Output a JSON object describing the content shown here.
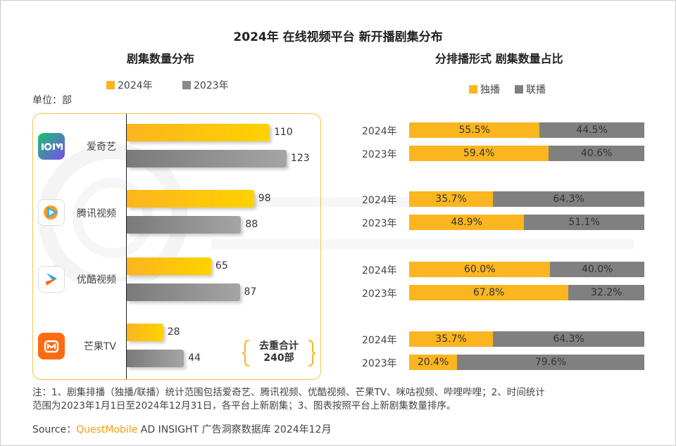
{
  "title": "2024年 在线视频平台 新开播剧集分布",
  "left": {
    "subtitle": "剧集数量分布",
    "unit": "单位：部",
    "legend": [
      "2024年",
      "2023年"
    ],
    "platforms": [
      {
        "name": "爱奇艺",
        "logo": "iQIYI"
      },
      {
        "name": "腾讯视频",
        "logo": "tencent-video-icon"
      },
      {
        "name": "优酷视频",
        "logo": "youku-icon"
      },
      {
        "name": "芒果TV",
        "logo": "mango-tv-icon"
      }
    ],
    "total_line1": "去重合计",
    "total_line2": "240部"
  },
  "right": {
    "subtitle": "分排播形式 剧集数量占比",
    "legend": [
      "独播",
      "联播"
    ]
  },
  "chart_data": [
    {
      "type": "bar",
      "orientation": "horizontal",
      "categories": [
        "爱奇艺",
        "腾讯视频",
        "优酷视频",
        "芒果TV"
      ],
      "series": [
        {
          "name": "2024年",
          "values": [
            110,
            98,
            65,
            28
          ]
        },
        {
          "name": "2023年",
          "values": [
            123,
            88,
            87,
            44
          ]
        }
      ],
      "colors": {
        "2024年": "#fbb51f",
        "2023年": "#8a8a8a"
      }
    },
    {
      "type": "bar",
      "orientation": "horizontal",
      "stacked": "percent",
      "rows": [
        {
          "year": "2024年",
          "exclusive": "55.5%",
          "joint": "44.5%"
        },
        {
          "year": "2023年",
          "exclusive": "59.4%",
          "joint": "40.6%"
        },
        {
          "year": "2024年",
          "exclusive": "35.7%",
          "joint": "64.3%"
        },
        {
          "year": "2023年",
          "exclusive": "48.9%",
          "joint": "51.1%"
        },
        {
          "year": "2024年",
          "exclusive": "60.0%",
          "joint": "40.0%"
        },
        {
          "year": "2023年",
          "exclusive": "67.8%",
          "joint": "32.2%"
        },
        {
          "year": "2024年",
          "exclusive": "35.7%",
          "joint": "64.3%"
        },
        {
          "year": "2023年",
          "exclusive": "20.4%",
          "joint": "79.6%"
        }
      ],
      "series": [
        {
          "name": "独播"
        },
        {
          "name": "联播"
        }
      ],
      "colors": {
        "独播": "#fbb51f",
        "联播": "#808080"
      }
    }
  ],
  "notes": {
    "line1": "注：1、剧集排播（独播/联播）统计范围包括爱奇艺、腾讯视频、优酷视频、芒果TV、咪咕视频、哔哩哔哩；2、时间统计",
    "line2": "范围为2023年1月1日至2024年12月31日，各平台上新剧集；3、图表按照平台上新剧集数量排序。"
  },
  "source": {
    "label": "Source：",
    "brand": "QuestMobile",
    "rest": " AD INSIGHT 广告洞察数据库 2024年12月"
  },
  "watermark": "QUESTMOBILE"
}
